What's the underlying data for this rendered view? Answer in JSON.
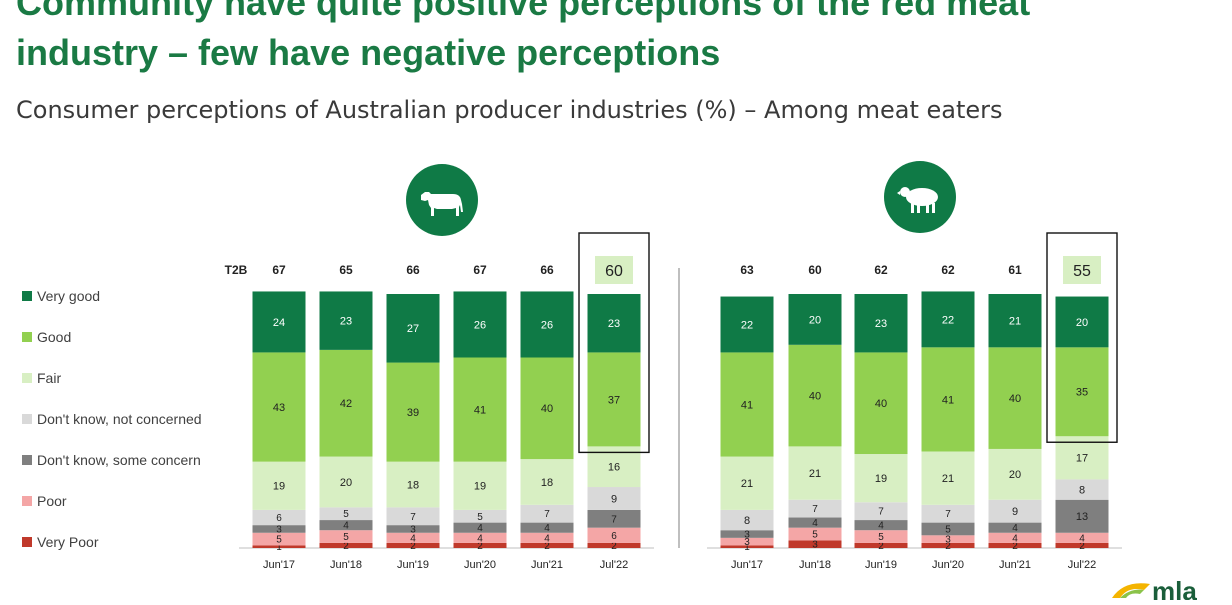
{
  "header": {
    "title_line1": "Community have quite positive perceptions of the red meat",
    "title_line2": "industry – few have negative perceptions",
    "subtitle": "Consumer perceptions of Australian producer industries (%) – Among meat eaters"
  },
  "colors": {
    "very_good": "#0f7a46",
    "good": "#92d050",
    "fair": "#d8efc3",
    "dont_know_not_concerned": "#d9d9d9",
    "dont_know_some_concern": "#7f7f7f",
    "poor": "#f4a6a6",
    "very_poor": "#c0392b",
    "title": "#1a7a44"
  },
  "icons": {
    "cattle": "cow-icon",
    "sheep": "sheep-icon",
    "logo": "mla-logo"
  },
  "logo_text": "mla",
  "t2b_label": "T2B",
  "legend": [
    {
      "key": "very_good",
      "label": "Very good"
    },
    {
      "key": "good",
      "label": "Good"
    },
    {
      "key": "fair",
      "label": "Fair"
    },
    {
      "key": "dont_know_not_concerned",
      "label": "Don't know, not concerned"
    },
    {
      "key": "dont_know_some_concern",
      "label": "Don't know, some concern"
    },
    {
      "key": "poor",
      "label": "Poor"
    },
    {
      "key": "very_poor",
      "label": "Very Poor"
    }
  ],
  "chart_data": [
    {
      "type": "bar",
      "stacked": true,
      "panel": "cattle",
      "categories": [
        "Jun'17",
        "Jun'18",
        "Jun'19",
        "Jun'20",
        "Jun'21",
        "Jul'22"
      ],
      "t2b": [
        67,
        65,
        66,
        67,
        66,
        60
      ],
      "highlight": "Jul'22",
      "series": [
        {
          "key": "very_poor",
          "name": "Very Poor",
          "values": [
            1,
            2,
            2,
            2,
            2,
            2
          ]
        },
        {
          "key": "poor",
          "name": "Poor",
          "values": [
            5,
            5,
            4,
            4,
            4,
            6
          ]
        },
        {
          "key": "dont_know_some_concern",
          "name": "Don't know, some concern",
          "values": [
            3,
            4,
            3,
            4,
            4,
            7
          ]
        },
        {
          "key": "dont_know_not_concerned",
          "name": "Don't know, not concerned",
          "values": [
            6,
            5,
            7,
            5,
            7,
            9
          ]
        },
        {
          "key": "fair",
          "name": "Fair",
          "values": [
            19,
            20,
            18,
            19,
            18,
            16
          ]
        },
        {
          "key": "good",
          "name": "Good",
          "values": [
            43,
            42,
            39,
            41,
            40,
            37
          ]
        },
        {
          "key": "very_good",
          "name": "Very good",
          "values": [
            24,
            23,
            27,
            26,
            26,
            23
          ]
        }
      ]
    },
    {
      "type": "bar",
      "stacked": true,
      "panel": "sheep",
      "categories": [
        "Jun'17",
        "Jun'18",
        "Jun'19",
        "Jun'20",
        "Jun'21",
        "Jul'22"
      ],
      "t2b": [
        63,
        60,
        62,
        62,
        61,
        55
      ],
      "highlight": "Jul'22",
      "series": [
        {
          "key": "very_poor",
          "name": "Very Poor",
          "values": [
            1,
            3,
            2,
            2,
            2,
            2
          ]
        },
        {
          "key": "poor",
          "name": "Poor",
          "values": [
            3,
            5,
            5,
            3,
            4,
            4
          ]
        },
        {
          "key": "dont_know_some_concern",
          "name": "Don't know, some concern",
          "values": [
            3,
            4,
            4,
            5,
            4,
            13
          ]
        },
        {
          "key": "dont_know_not_concerned",
          "name": "Don't know, not concerned",
          "values": [
            8,
            7,
            7,
            7,
            9,
            8
          ]
        },
        {
          "key": "fair",
          "name": "Fair",
          "values": [
            21,
            21,
            19,
            21,
            20,
            17
          ]
        },
        {
          "key": "good",
          "name": "Good",
          "values": [
            41,
            40,
            40,
            41,
            40,
            35
          ]
        },
        {
          "key": "very_good",
          "name": "Very good",
          "values": [
            22,
            20,
            23,
            22,
            21,
            20
          ]
        }
      ]
    }
  ]
}
